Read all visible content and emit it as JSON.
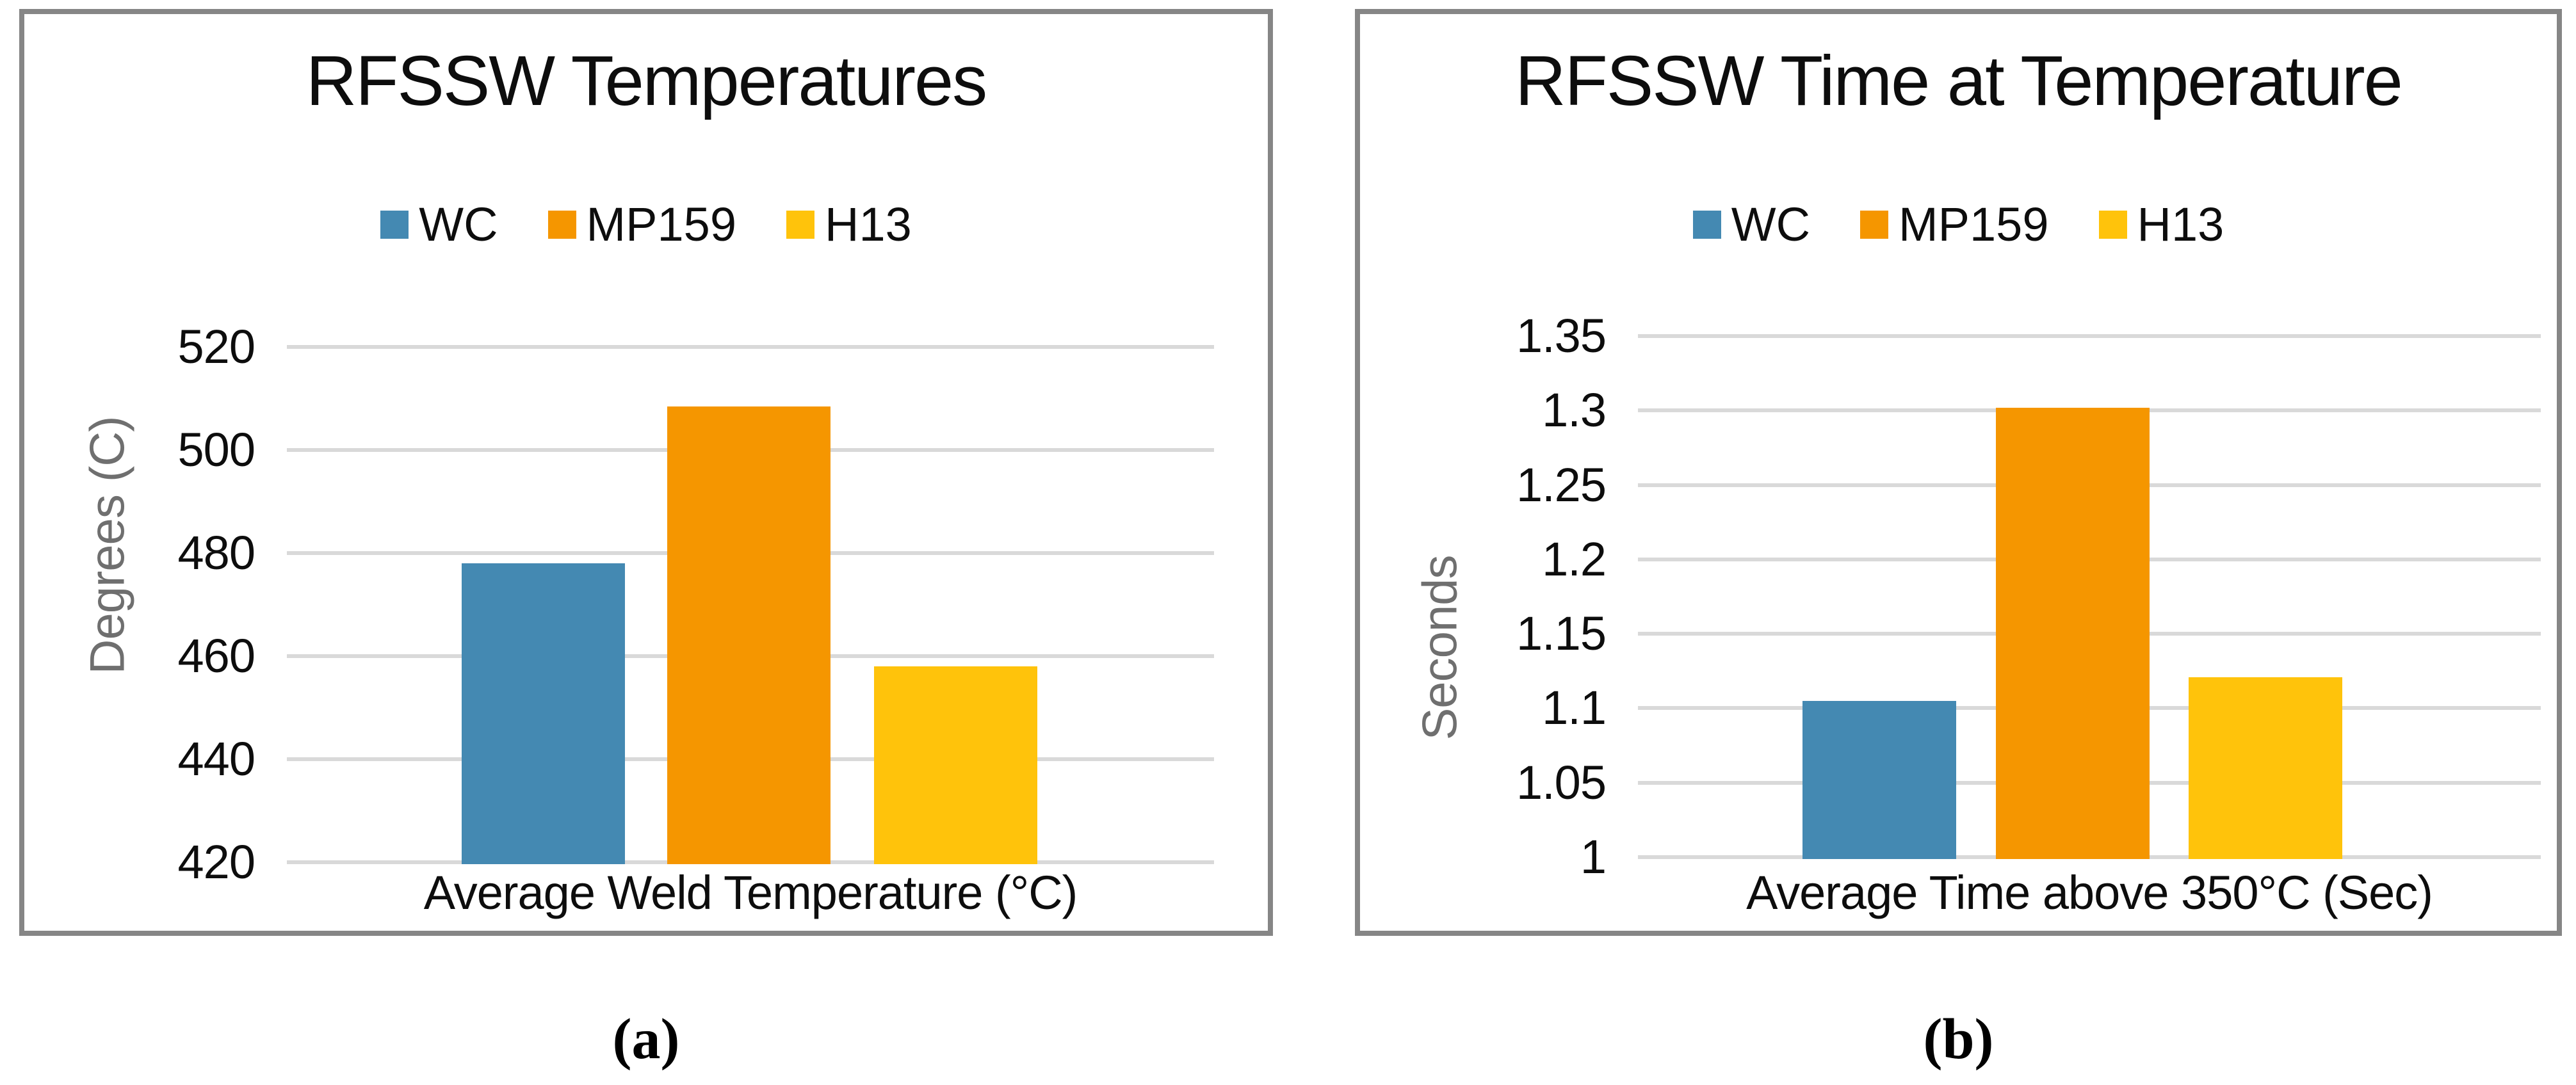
{
  "figure": {
    "captions": {
      "a": "(a)",
      "b": "(b)"
    }
  },
  "colors": {
    "series_wc_blue": "#4489B2",
    "series_mp159_orange": "#F59600",
    "series_h13_yellow": "#FFC30B",
    "gridline": "#D9D9D9",
    "frame_border": "#868686",
    "axis_title_gray": "#6F6F6F",
    "text_black": "#0D0D0D"
  },
  "chart_data": [
    {
      "type": "bar",
      "title": "RFSSW Temperatures",
      "xlabel": "Average Weld Temperature (°C)",
      "ylabel": "Degrees (C)",
      "categories": [
        "WC",
        "MP159",
        "H13"
      ],
      "values": [
        478,
        508.5,
        458
      ],
      "series_colors": [
        "#4489B2",
        "#F59600",
        "#FFC30B"
      ],
      "legend": [
        {
          "label": "WC",
          "color": "#4489B2"
        },
        {
          "label": "MP159",
          "color": "#F59600"
        },
        {
          "label": "H13",
          "color": "#FFC30B"
        }
      ],
      "ylim": [
        420,
        520
      ],
      "ytick_step": 20,
      "ytick_labels": [
        "420",
        "440",
        "460",
        "480",
        "500",
        "520"
      ],
      "grid": true,
      "legend_position": "top"
    },
    {
      "type": "bar",
      "title": "RFSSW Time at Temperature",
      "xlabel": "Average Time above 350°C (Sec)",
      "ylabel": "Seconds",
      "categories": [
        "WC",
        "MP159",
        "H13"
      ],
      "values": [
        1.105,
        1.302,
        1.121
      ],
      "series_colors": [
        "#4489B2",
        "#F59600",
        "#FFC30B"
      ],
      "legend": [
        {
          "label": "WC",
          "color": "#4489B2"
        },
        {
          "label": "MP159",
          "color": "#F59600"
        },
        {
          "label": "H13",
          "color": "#FFC30B"
        }
      ],
      "ylim": [
        1,
        1.35
      ],
      "ytick_step": 0.05,
      "ytick_labels": [
        "1",
        "1.05",
        "1.1",
        "1.15",
        "1.2",
        "1.25",
        "1.3",
        "1.35"
      ],
      "grid": true,
      "legend_position": "top"
    }
  ]
}
